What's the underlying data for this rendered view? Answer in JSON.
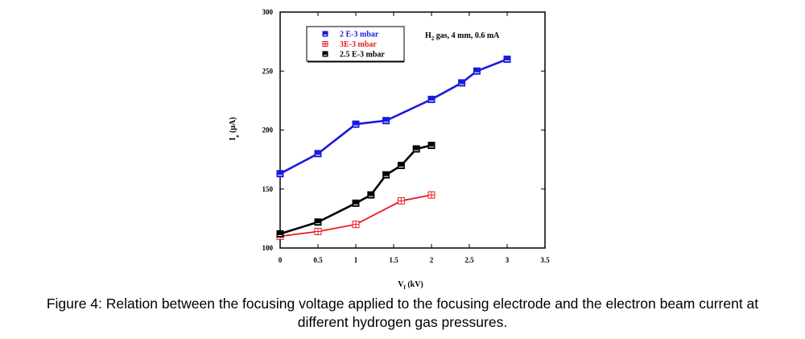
{
  "chart_data": {
    "type": "line",
    "title": "",
    "xlabel": "V_f (kV)",
    "xlabel_main": "V",
    "xlabel_sub": "f",
    "xlabel_unit": " (kV)",
    "ylabel_main": "I",
    "ylabel_sub": "e",
    "ylabel_unit": " (μA)",
    "xlim": [
      0,
      3.5
    ],
    "ylim": [
      100,
      300
    ],
    "xticks": [
      "0",
      "0.5",
      "1",
      "1.5",
      "2",
      "2.5",
      "3",
      "3.5"
    ],
    "yticks": [
      "100",
      "150",
      "200",
      "250",
      "300"
    ],
    "annotation": {
      "main": "H",
      "sub": "2",
      "rest": " gas, 4 mm, 0.6 mA"
    },
    "legend_position": "top-left",
    "series": [
      {
        "name": "2 E-3 mbar",
        "color": "#1a1adc",
        "marker": "half-square",
        "x": [
          0,
          0.5,
          1,
          1.4,
          2,
          2.4,
          2.6,
          3
        ],
        "y": [
          163,
          180,
          205,
          208,
          226,
          240,
          250,
          260
        ]
      },
      {
        "name": "3E-3 mbar",
        "color": "#e8181e",
        "marker": "crossed-square",
        "x": [
          0,
          0.5,
          1,
          1.6,
          2
        ],
        "y": [
          110,
          114,
          120,
          140,
          145
        ]
      },
      {
        "name": "2.5 E-3 mbar",
        "color": "#000000",
        "marker": "half-square",
        "x": [
          0,
          0.5,
          1,
          1.2,
          1.4,
          1.6,
          1.8,
          2
        ],
        "y": [
          112,
          122,
          138,
          145,
          162,
          170,
          184,
          187
        ]
      }
    ]
  },
  "caption": {
    "line1": "Figure 4: Relation between the focusing voltage applied to the focusing electrode and the electron beam current at",
    "line2": "different hydrogen gas pressures."
  }
}
